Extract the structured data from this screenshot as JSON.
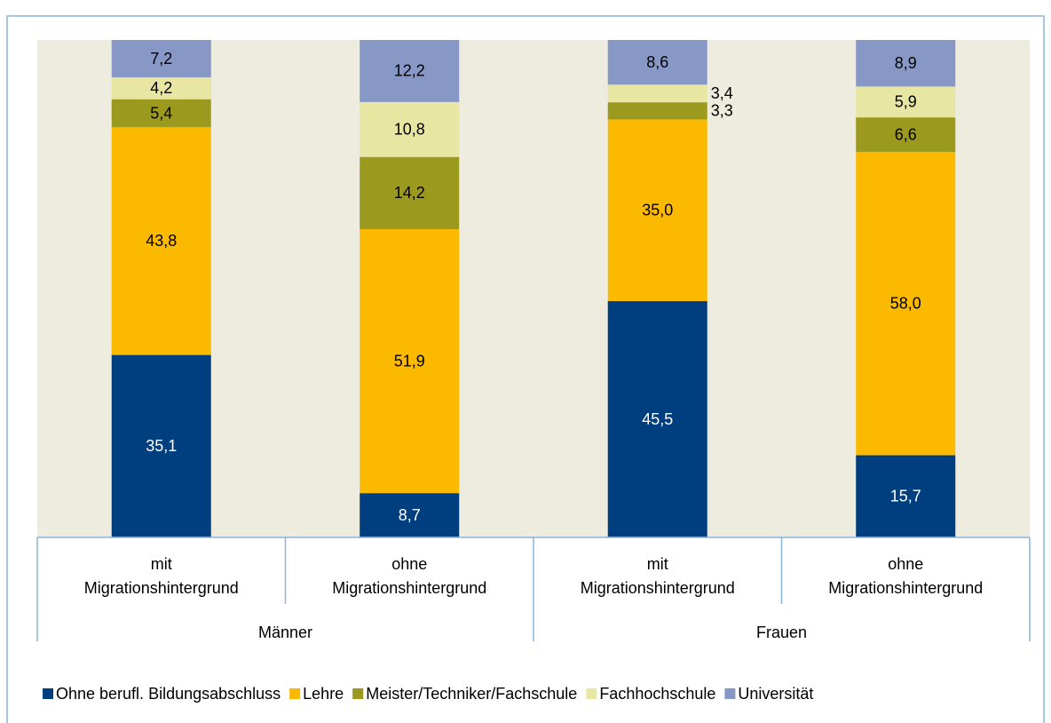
{
  "chart_data": {
    "type": "stacked_percent",
    "categories": [
      [
        "mit",
        "Migrationshintergrund"
      ],
      [
        "ohne",
        "Migrationshintergrund"
      ],
      [
        "mit",
        "Migrationshintergrund"
      ],
      [
        "ohne",
        "Migrationshintergrund"
      ]
    ],
    "groups": [
      "Männer",
      "Frauen"
    ],
    "series": [
      {
        "name": "Ohne berufl. Bildungsabschluss",
        "color": "#003f7f",
        "values": [
          35.1,
          8.7,
          45.5,
          15.7
        ],
        "value_labels": [
          "35,1",
          "8,7",
          "45,5",
          "15,7"
        ]
      },
      {
        "name": "Lehre",
        "color": "#fbb900",
        "values": [
          43.8,
          51.9,
          35.0,
          58.0
        ],
        "value_labels": [
          "43,8",
          "51,9",
          "35,0",
          "58,0"
        ]
      },
      {
        "name": "Meister/Techniker/Fachschule",
        "color": "#9b9a1e",
        "values": [
          5.4,
          14.2,
          3.3,
          6.6
        ],
        "value_labels": [
          "5,4",
          "14,2",
          "3,3",
          "6,6"
        ]
      },
      {
        "name": "Fachhochschule",
        "color": "#e7e6a2",
        "values": [
          4.2,
          10.8,
          3.4,
          5.9
        ],
        "value_labels": [
          "4,2",
          "10,8",
          "3,4",
          "5,9"
        ]
      },
      {
        "name": "Universität",
        "color": "#8898c6",
        "values": [
          7.2,
          12.2,
          8.6,
          8.9
        ],
        "value_labels": [
          "7,2",
          "12,2",
          "8,6",
          "8,9"
        ]
      }
    ],
    "legend": "bottom"
  }
}
